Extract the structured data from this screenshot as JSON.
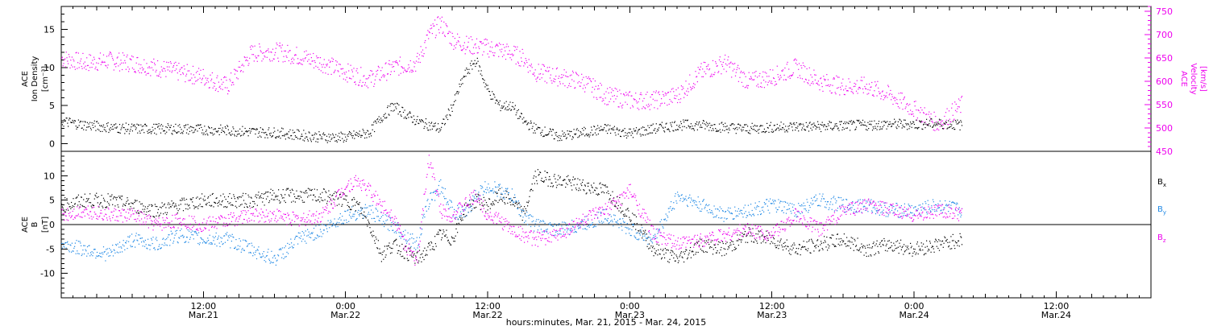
{
  "colors": {
    "black": "#000000",
    "magenta": "#ee00ee",
    "blue": "#1e88e5"
  },
  "time_axis": {
    "xlabel": "hours:minutes, Mar. 21, 2015 - Mar. 24, 2015",
    "range_hours": [
      0,
      92
    ],
    "ticks": [
      {
        "h": 12,
        "line1": "12:00",
        "line2": "Mar.21"
      },
      {
        "h": 24,
        "line1": "0:00",
        "line2": "Mar.22"
      },
      {
        "h": 36,
        "line1": "12:00",
        "line2": "Mar.22"
      },
      {
        "h": 48,
        "line1": "0:00",
        "line2": "Mar.23"
      },
      {
        "h": 60,
        "line1": "12:00",
        "line2": "Mar.23"
      },
      {
        "h": 72,
        "line1": "0:00",
        "line2": "Mar.24"
      },
      {
        "h": 84,
        "line1": "12:00",
        "line2": "Mar.24"
      }
    ]
  },
  "chart_data": [
    {
      "type": "scatter",
      "panel": "top",
      "xlabel": "hours:minutes, Mar. 21, 2015 - Mar. 24, 2015",
      "left_axis": {
        "line1": "ACE",
        "line2": "Ion Density",
        "line3": "[cm⁻³]",
        "ylim": [
          -1,
          18
        ],
        "tick_labels": [
          "0",
          "5",
          "10",
          "15"
        ]
      },
      "right_axis": {
        "line1": "ACE",
        "line2": "Velocity",
        "line3": "[km/s]",
        "ylim": [
          450,
          760
        ],
        "tick_labels": [
          "450",
          "500",
          "550",
          "600",
          "650",
          "700",
          "750"
        ]
      },
      "series": [
        {
          "color": "#000000",
          "axis": "left",
          "x": [
            0,
            2,
            4,
            6,
            8,
            10,
            12,
            14,
            16,
            18,
            20,
            22,
            24,
            26,
            27,
            28,
            29,
            30,
            32,
            33,
            34,
            35,
            36,
            37,
            38,
            39,
            40,
            42,
            44,
            46,
            48,
            50,
            52,
            54,
            56,
            58,
            60,
            62,
            64,
            66,
            68,
            70,
            72,
            74,
            76
          ],
          "y": [
            3,
            2.5,
            2.2,
            2,
            2,
            2,
            1.9,
            1.8,
            1.6,
            1.5,
            1.2,
            0.9,
            0.9,
            1.5,
            3.5,
            5,
            4,
            3,
            2,
            5,
            9,
            11,
            7,
            5,
            5,
            3,
            2,
            1,
            1.5,
            2,
            1.4,
            2,
            2.5,
            2.5,
            2.2,
            2,
            2.2,
            2.3,
            2.3,
            2.4,
            2.5,
            2.6,
            2.6,
            2.7,
            2.5
          ]
        },
        {
          "color": "#ee00ee",
          "axis": "right",
          "x": [
            0,
            2,
            4,
            6,
            8,
            10,
            12,
            14,
            16,
            18,
            20,
            22,
            24,
            26,
            28,
            30,
            31,
            32,
            33,
            34,
            35,
            36,
            37,
            38,
            39,
            40,
            42,
            44,
            46,
            48,
            50,
            52,
            54,
            56,
            58,
            60,
            62,
            64,
            66,
            68,
            70,
            72,
            74,
            76
          ],
          "y": [
            650,
            640,
            645,
            640,
            630,
            620,
            610,
            590,
            660,
            665,
            655,
            640,
            620,
            605,
            630,
            640,
            700,
            725,
            690,
            680,
            675,
            672,
            668,
            660,
            650,
            620,
            610,
            600,
            570,
            560,
            560,
            570,
            620,
            640,
            600,
            610,
            630,
            600,
            590,
            590,
            570,
            540,
            510,
            550
          ]
        }
      ]
    },
    {
      "type": "scatter",
      "panel": "bottom",
      "xlabel": "hours:minutes, Mar. 21, 2015 - Mar. 24, 2015",
      "left_axis": {
        "line1": "ACE",
        "line2": "B",
        "line3": "[nT]",
        "ylim": [
          -15,
          15
        ],
        "tick_labels": [
          "-10",
          "-5",
          "0",
          "5",
          "10"
        ]
      },
      "legend": {
        "placement": "right",
        "entries": [
          {
            "name": "B",
            "sub": "x",
            "color": "#000000"
          },
          {
            "name": "B",
            "sub": "y",
            "color": "#1e88e5"
          },
          {
            "name": "B",
            "sub": "z",
            "color": "#ee00ee"
          }
        ]
      },
      "series": [
        {
          "name": "Bx",
          "color": "#000000",
          "x": [
            0,
            2,
            4,
            6,
            8,
            10,
            12,
            14,
            16,
            18,
            20,
            22,
            24,
            25,
            26,
            27,
            28,
            30,
            31,
            32,
            33,
            34,
            35,
            36,
            37,
            38,
            39,
            40,
            42,
            44,
            46,
            48,
            50,
            52,
            54,
            56,
            58,
            60,
            62,
            64,
            66,
            68,
            70,
            72,
            74,
            76
          ],
          "y": [
            4,
            5,
            5,
            4,
            3,
            4,
            5,
            5,
            5,
            6,
            6,
            6,
            5,
            4,
            0,
            -6,
            -4,
            -7,
            -5,
            -2,
            -3,
            3,
            5,
            4,
            6,
            5,
            2,
            10,
            9,
            8,
            7,
            2,
            -5,
            -7,
            -4,
            -5,
            -2,
            -3,
            -5,
            -4,
            -3,
            -5,
            -4,
            -5,
            -4,
            -3
          ]
        },
        {
          "name": "By",
          "color": "#1e88e5",
          "x": [
            0,
            2,
            4,
            6,
            8,
            10,
            12,
            14,
            16,
            18,
            20,
            22,
            24,
            26,
            27,
            28,
            30,
            31,
            32,
            33,
            34,
            35,
            36,
            37,
            38,
            39,
            40,
            42,
            44,
            46,
            48,
            50,
            52,
            54,
            56,
            58,
            60,
            62,
            64,
            66,
            68,
            70,
            72,
            74,
            76
          ],
          "y": [
            -4,
            -5,
            -6,
            -3,
            -4,
            -2,
            -3,
            -3,
            -5,
            -7,
            -3,
            -1,
            2,
            3,
            1,
            0,
            -4,
            5,
            8,
            3,
            2,
            6,
            8,
            7,
            6,
            2,
            0,
            -1,
            0,
            2,
            -1,
            -3,
            6,
            4,
            2,
            3,
            4,
            3,
            5,
            4,
            4,
            3,
            3,
            4,
            3
          ]
        },
        {
          "name": "Bz",
          "color": "#ee00ee",
          "x": [
            0,
            2,
            4,
            6,
            8,
            10,
            12,
            14,
            16,
            18,
            20,
            22,
            24,
            25,
            26,
            27,
            28,
            29,
            30,
            31,
            32,
            33,
            34,
            35,
            36,
            37,
            38,
            39,
            40,
            42,
            44,
            46,
            48,
            50,
            52,
            54,
            56,
            58,
            60,
            62,
            64,
            66,
            68,
            70,
            72,
            74,
            76
          ],
          "y": [
            2,
            3,
            2,
            2,
            0,
            1,
            0,
            1,
            2,
            2,
            1,
            2,
            8,
            9,
            7,
            4,
            2,
            -4,
            -8,
            14,
            3,
            2,
            4,
            6,
            2,
            1,
            -1,
            -2,
            -3,
            -2,
            1,
            3,
            7,
            -2,
            -4,
            -3,
            -2,
            -1,
            -2,
            2,
            -1,
            3,
            4,
            3,
            2,
            3,
            2
          ]
        }
      ]
    }
  ]
}
